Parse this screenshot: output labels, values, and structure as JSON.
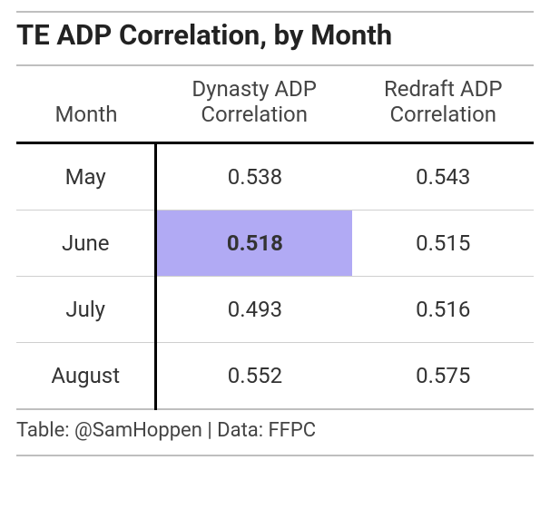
{
  "title": "TE ADP Correlation, by Month",
  "table": {
    "type": "table",
    "columns": [
      "Month",
      "Dynasty ADP Correlation",
      "Redraft ADP Correlation"
    ],
    "rows": [
      {
        "month": "May",
        "dynasty": "0.538",
        "redraft": "0.543"
      },
      {
        "month": "June",
        "dynasty": "0.518",
        "redraft": "0.515"
      },
      {
        "month": "July",
        "dynasty": "0.493",
        "redraft": "0.516"
      },
      {
        "month": "August",
        "dynasty": "0.552",
        "redraft": "0.575"
      }
    ],
    "column_widths_pct": [
      27,
      38,
      35
    ],
    "highlight": {
      "row": 1,
      "col": 1,
      "bg_color": "#b1aaf4",
      "bold": true
    },
    "header_fontsize_pt": 18,
    "body_fontsize_pt": 18,
    "title_fontsize_pt": 23,
    "caption_fontsize_pt": 16,
    "text_color": "#333333",
    "title_color": "#222222",
    "rule_color_light": "#bfbfbf",
    "rule_color_heavy": "#000000",
    "row_divider_color": "#cfcfcf",
    "background_color": "#ffffff"
  },
  "caption": "Table: @SamHoppen | Data: FFPC"
}
